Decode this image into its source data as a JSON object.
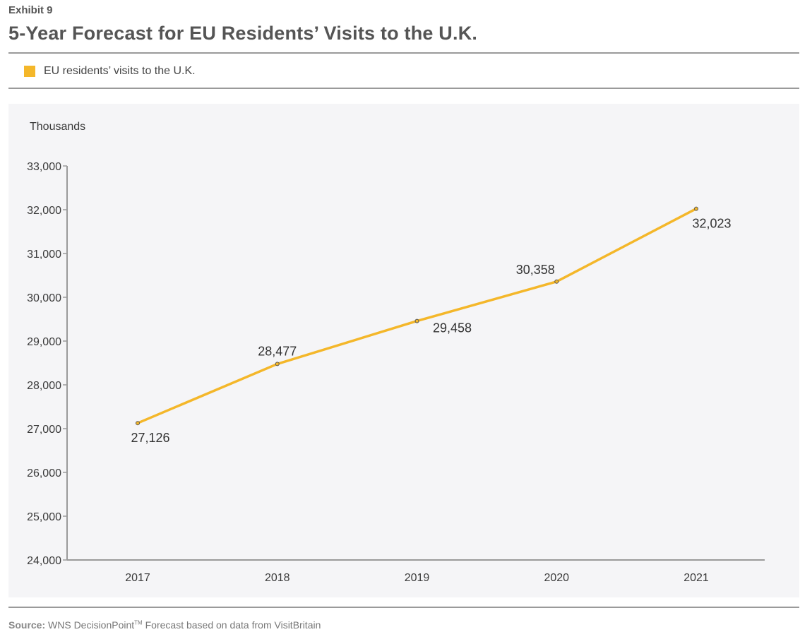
{
  "header": {
    "exhibit": "Exhibit 9",
    "title": "5-Year Forecast for EU Residents’ Visits to the U.K."
  },
  "legend": {
    "label": "EU residents’ visits to the U.K.",
    "color": "#f4b72a"
  },
  "chart_data": {
    "type": "line",
    "title": "5-Year Forecast for EU Residents’ Visits to the U.K.",
    "ylabel": "Thousands",
    "xlabel": "",
    "categories": [
      "2017",
      "2018",
      "2019",
      "2020",
      "2021"
    ],
    "series": [
      {
        "name": "EU residents’ visits to the U.K.",
        "color": "#f4b72a",
        "values": [
          27126,
          28477,
          29458,
          30358,
          32023
        ],
        "labels": [
          "27,126",
          "28,477",
          "29,458",
          "30,358",
          "32,023"
        ],
        "label_positions": [
          "below",
          "above",
          "below",
          "above",
          "below"
        ]
      }
    ],
    "ylim": [
      24000,
      33000
    ],
    "yticks": [
      24000,
      25000,
      26000,
      27000,
      28000,
      29000,
      30000,
      31000,
      32000,
      33000
    ],
    "ytick_labels": [
      "24,000",
      "25,000",
      "26,000",
      "27,000",
      "28,000",
      "29,000",
      "30,000",
      "31,000",
      "32,000",
      "33,000"
    ],
    "grid": false,
    "legend_position": "top-left"
  },
  "footer": {
    "source_label": "Source:",
    "source_text_1": "WNS DecisionPoint",
    "source_tm": "TM",
    "source_text_2": " Forecast based on data from VisitBritain"
  }
}
